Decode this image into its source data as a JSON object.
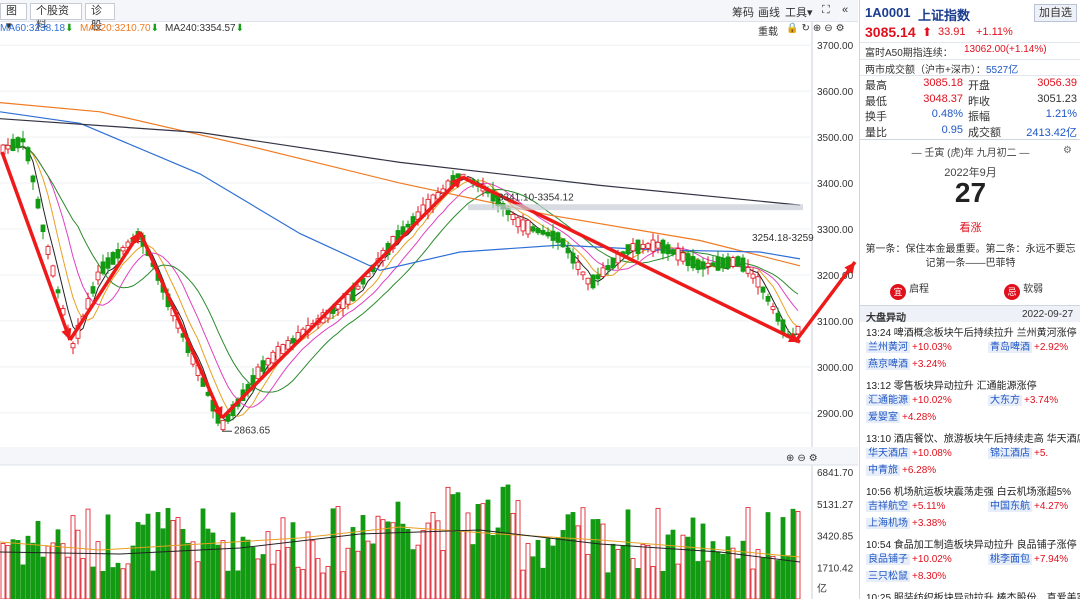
{
  "toolbar": {
    "left_buttons": [
      "图",
      "个股资料",
      "诊股"
    ],
    "right_items": [
      "筹码",
      "画线",
      "工具"
    ],
    "sub_items": [
      "重载"
    ],
    "ma_legend": [
      {
        "label": "MA60:3238.18",
        "color": "#2f6fd6"
      },
      {
        "label": "MA120:3210.70",
        "color": "#f07a22"
      },
      {
        "label": "MA240:3354.57",
        "color": "#333333"
      }
    ]
  },
  "chart": {
    "y_ticks": [
      "3700.00",
      "3600.00",
      "3500.00",
      "3400.00",
      "3300.00",
      "3200.00",
      "3100.00",
      "3000.00",
      "2900.00"
    ],
    "y_range": [
      2830,
      3720
    ],
    "volume_ticks": [
      "6841.70",
      "5131.27",
      "3420.85",
      "1710.42"
    ],
    "volume_unit": "亿",
    "volume_max": 6841.7,
    "annotations": {
      "low_label": "2863.65",
      "range_label_1": "3341.10-3354.12",
      "range_label_2": "3254.18-3259"
    }
  },
  "quote": {
    "code": "1A0001",
    "name": "上证指数",
    "add_button": "加自选",
    "price": "3085.14",
    "change": "33.91",
    "change_pct": "+1.11%",
    "a50_label": "富时A50期指连续：",
    "a50_value": "13062.00(+1.14%)",
    "turnover_label": "两市成交额（沪市+深市）：",
    "turnover_value": "5527亿",
    "stats": [
      {
        "l1": "最高",
        "v1": "3085.18",
        "c1": "red",
        "l2": "开盘",
        "v2": "3056.39",
        "c2": "red"
      },
      {
        "l1": "最低",
        "v1": "3048.37",
        "c1": "red",
        "l2": "昨收",
        "v2": "3051.23",
        "c2": "normal"
      },
      {
        "l1": "换手",
        "v1": "0.48%",
        "c1": "blue",
        "l2": "振幅",
        "v2": "1.21%",
        "c2": "blue"
      },
      {
        "l1": "量比",
        "v1": "0.95",
        "c1": "blue",
        "l2": "成交额",
        "v2": "2413.42亿",
        "c2": "blue"
      }
    ]
  },
  "calendar": {
    "lunar": "壬寅 (虎)年 九月初二",
    "month": "2022年9月",
    "day": "27",
    "note": "看涨",
    "quote_line1": "第一条：保住本金最重要。第二条：永远不要忘",
    "quote_line2": "记第一条——巴菲特",
    "btn_left_icon": "宜",
    "btn_left": "启程",
    "btn_right_icon": "忌",
    "btn_right": "软弱"
  },
  "news": {
    "header": "大盘异动",
    "date": "2022-09-27",
    "items": [
      {
        "time": "13:24",
        "title": "啤酒概念板块午后持续拉升 兰州黄河涨停",
        "chips": [
          [
            "兰州黄河",
            "+10.03%"
          ],
          [
            "青岛啤酒",
            "+2.92%"
          ],
          [
            "燕京啤酒",
            "+3.24%"
          ]
        ]
      },
      {
        "time": "13:12",
        "title": "零售板块异动拉升 汇通能源涨停",
        "chips": [
          [
            "汇通能源",
            "+10.02%"
          ],
          [
            "大东方",
            "+3.74%"
          ],
          [
            "爱婴室",
            "+4.28%"
          ]
        ]
      },
      {
        "time": "13:10",
        "title": "酒店餐饮、旅游板块午后持续走高 华天酒店涨",
        "chips": [
          [
            "华天酒店",
            "+10.08%"
          ],
          [
            "锦江酒店",
            "+5."
          ],
          [
            "中青旅",
            "+6.28%"
          ]
        ]
      },
      {
        "time": "10:56",
        "title": "机场航运板块震荡走强 白云机场涨超5%",
        "chips": [
          [
            "吉祥航空",
            "+5.11%"
          ],
          [
            "中国东航",
            "+4.27%"
          ],
          [
            "上海机场",
            "+3.38%"
          ]
        ]
      },
      {
        "time": "10:54",
        "title": "食品加工制造板块异动拉升 良品铺子涨停",
        "chips": [
          [
            "良品铺子",
            "+10.02%"
          ],
          [
            "桃李面包",
            "+7.94%"
          ],
          [
            "三只松鼠",
            "+8.30%"
          ]
        ]
      },
      {
        "time": "10:25",
        "title": "服装纺织板块异动拉升 棒杰股份、真爱美家涨",
        "chips": []
      }
    ]
  },
  "colors": {
    "up": "#e0101d",
    "down": "#129a12",
    "arrow": "#ee1a1a"
  }
}
